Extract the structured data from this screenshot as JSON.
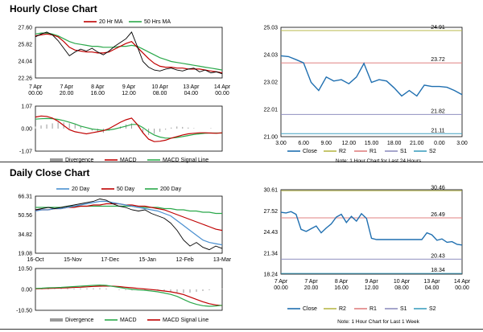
{
  "sections": {
    "hourly_title": "Hourly Close Chart",
    "daily_title": "Daily Close Chart"
  },
  "colors": {
    "ma_short": "#c00000",
    "ma_long": "#2aa84a",
    "price": "#000000",
    "histogram": "#9a9a9a",
    "close": "#1f6fb0",
    "r2": "#b8b84a",
    "r1": "#e08080",
    "s1": "#9090c0",
    "s2": "#40a0c0",
    "ma_200": "#2aa84a",
    "ma_20": "#4a8fd0"
  },
  "chart_data": [
    {
      "id": "hourly_price",
      "type": "line",
      "title": "",
      "legend": [
        "20 Hr MA",
        "50 Hrs MA"
      ],
      "y_ticks": [
        "27.60",
        "25.82",
        "24.04",
        "22.26"
      ],
      "ylim": [
        22.26,
        27.6
      ],
      "x_ticks": [
        "7 Apr\n00.00",
        "7 Apr\n20.00",
        "8 Apr\n16.00",
        "9 Apr\n12.00",
        "10 Apr\n08.00",
        "13 Apr\n04.00",
        "14 Apr\n00.00"
      ],
      "series": [
        {
          "name": "Price",
          "values": [
            26.6,
            26.9,
            27.1,
            26.8,
            26.2,
            25.4,
            24.6,
            25.0,
            25.3,
            25.1,
            25.4,
            25.0,
            24.7,
            25.1,
            25.6,
            26.0,
            26.4,
            27.1,
            25.6,
            24.0,
            23.4,
            23.1,
            23.0,
            23.2,
            23.3,
            23.1,
            23.0,
            23.2,
            23.3,
            22.9,
            23.1,
            22.8,
            22.9,
            22.7
          ]
        },
        {
          "name": "20 Hr MA",
          "values": [
            26.7,
            26.8,
            26.9,
            26.8,
            26.6,
            26.1,
            25.5,
            25.2,
            25.1,
            25.0,
            25.0,
            24.9,
            24.9,
            25.0,
            25.3,
            25.6,
            25.9,
            26.1,
            25.5,
            24.9,
            24.3,
            23.8,
            23.5,
            23.4,
            23.4,
            23.3,
            23.3,
            23.2,
            23.2,
            23.2,
            23.1,
            23.0,
            22.9,
            22.8
          ]
        },
        {
          "name": "50 Hrs MA",
          "values": [
            26.9,
            27.0,
            27.0,
            26.9,
            26.7,
            26.4,
            26.1,
            25.9,
            25.8,
            25.7,
            25.6,
            25.6,
            25.5,
            25.5,
            25.5,
            25.6,
            25.6,
            25.7,
            25.6,
            25.3,
            25.0,
            24.7,
            24.4,
            24.2,
            24.0,
            23.9,
            23.8,
            23.7,
            23.6,
            23.5,
            23.4,
            23.3,
            23.2,
            23.1
          ]
        }
      ]
    },
    {
      "id": "hourly_macd",
      "type": "line",
      "legend": [
        "Divergence",
        "MACD",
        "MACD Signal Line"
      ],
      "y_ticks": [
        "1.07",
        "0.00",
        "-1.07"
      ],
      "ylim": [
        -1.07,
        1.07
      ],
      "series": [
        {
          "name": "Divergence",
          "values": [
            0.1,
            0.15,
            0.2,
            0.25,
            0.3,
            0.3,
            0.25,
            0.2,
            0.1,
            0.0,
            -0.1,
            -0.15,
            -0.2,
            -0.1,
            0.0,
            0.1,
            0.2,
            0.25,
            0.0,
            -0.2,
            -0.3,
            -0.25,
            -0.15,
            -0.05,
            0.05,
            0.1,
            0.08,
            0.05,
            0.02,
            0.0,
            0.0,
            0.02,
            0.0,
            0.0
          ]
        },
        {
          "name": "MACD",
          "values": [
            0.55,
            0.6,
            0.58,
            0.5,
            0.35,
            0.15,
            -0.05,
            -0.15,
            -0.2,
            -0.25,
            -0.2,
            -0.15,
            -0.1,
            0.0,
            0.15,
            0.3,
            0.42,
            0.5,
            0.2,
            -0.2,
            -0.5,
            -0.62,
            -0.6,
            -0.55,
            -0.45,
            -0.38,
            -0.3,
            -0.25,
            -0.22,
            -0.2,
            -0.2,
            -0.21,
            -0.22,
            -0.2
          ]
        },
        {
          "name": "MACD Signal Line",
          "values": [
            0.45,
            0.47,
            0.48,
            0.47,
            0.44,
            0.38,
            0.3,
            0.22,
            0.12,
            0.05,
            -0.02,
            -0.05,
            -0.08,
            -0.06,
            -0.02,
            0.05,
            0.12,
            0.2,
            0.2,
            0.05,
            -0.15,
            -0.3,
            -0.4,
            -0.45,
            -0.45,
            -0.42,
            -0.38,
            -0.33,
            -0.28,
            -0.25,
            -0.22,
            -0.21,
            -0.21,
            -0.21
          ]
        }
      ]
    },
    {
      "id": "hourly_levels",
      "type": "line",
      "title": "",
      "legend": [
        "Close",
        "R2",
        "R1",
        "S1",
        "S2"
      ],
      "y_ticks": [
        "25.03",
        "24.03",
        "23.02",
        "22.01",
        "21.00"
      ],
      "ylim": [
        21.0,
        25.03
      ],
      "x_ticks": [
        "3.00",
        "6.00",
        "9.00",
        "12.00",
        "15.00",
        "18.00",
        "21.00",
        "0.00",
        "3.00"
      ],
      "levels": {
        "R2": 24.91,
        "R1": 23.72,
        "S1": 21.82,
        "S2": 21.11
      },
      "level_labels": [
        "24.91",
        "23.72",
        "21.82",
        "21.11"
      ],
      "series": [
        {
          "name": "Close",
          "values": [
            23.98,
            23.95,
            23.84,
            23.72,
            23.0,
            22.7,
            23.2,
            23.05,
            23.1,
            22.95,
            23.2,
            23.7,
            23.0,
            23.1,
            23.05,
            22.8,
            22.5,
            22.7,
            22.5,
            22.9,
            22.85,
            22.85,
            22.82,
            22.7,
            22.55
          ]
        }
      ],
      "note": "Note: 1 Hour Chart for Last 24 Hours"
    },
    {
      "id": "daily_price",
      "type": "line",
      "legend": [
        "20 Day",
        "50 Day",
        "200 Day"
      ],
      "y_ticks": [
        "66.31",
        "50.56",
        "34.82",
        "19.08"
      ],
      "ylim": [
        19.08,
        66.31
      ],
      "x_ticks": [
        "16-Oct",
        "15-Nov",
        "17-Dec",
        "15-Jan",
        "12-Feb",
        "13-Mar"
      ],
      "series": [
        {
          "name": "Price",
          "values": [
            55,
            56,
            57,
            56,
            57,
            58,
            59,
            60,
            61,
            62,
            64,
            63,
            60,
            58,
            57,
            55,
            54,
            55,
            52,
            50,
            48,
            44,
            38,
            30,
            25,
            28,
            24,
            22,
            25,
            23
          ]
        },
        {
          "name": "20 Day",
          "values": [
            54,
            55,
            55,
            56,
            56,
            57,
            58,
            59,
            60,
            61,
            62,
            62,
            61,
            60,
            59,
            58,
            57,
            56,
            55,
            54,
            52,
            50,
            46,
            42,
            38,
            34,
            30,
            28,
            27,
            26
          ]
        },
        {
          "name": "50 Day",
          "values": [
            55,
            55,
            55,
            56,
            56,
            57,
            57,
            58,
            58,
            59,
            59,
            60,
            60,
            60,
            59,
            59,
            58,
            58,
            57,
            56,
            55,
            53,
            51,
            49,
            47,
            45,
            43,
            41,
            39,
            38
          ]
        },
        {
          "name": "200 Day",
          "values": [
            57,
            57,
            57,
            57,
            57,
            58,
            58,
            58,
            58,
            58,
            58,
            58,
            58,
            58,
            58,
            58,
            57,
            57,
            57,
            57,
            56,
            56,
            55,
            55,
            54,
            54,
            53,
            53,
            52,
            52
          ]
        }
      ]
    },
    {
      "id": "daily_macd",
      "type": "line",
      "legend": [
        "Divergence",
        "MACD",
        "MACD Signal Line"
      ],
      "y_ticks": [
        "10.50",
        "0.00",
        "-10.50"
      ],
      "ylim": [
        -10.5,
        10.5
      ],
      "series": [
        {
          "name": "Divergence",
          "values": [
            0.2,
            0.3,
            0.3,
            0.2,
            0.3,
            0.4,
            0.4,
            0.5,
            0.5,
            0.5,
            0.6,
            0.4,
            0.0,
            -0.3,
            -0.4,
            -0.5,
            -0.4,
            -0.3,
            -0.4,
            -0.6,
            -0.8,
            -1.0,
            -1.4,
            -1.8,
            -1.6,
            -1.2,
            -0.8,
            -0.4,
            0.0,
            0.3
          ]
        },
        {
          "name": "MACD",
          "values": [
            0.5,
            0.6,
            0.8,
            0.9,
            1.0,
            1.2,
            1.4,
            1.6,
            1.8,
            2.0,
            2.2,
            2.0,
            1.5,
            1.0,
            0.5,
            0.0,
            -0.3,
            -0.5,
            -0.8,
            -1.2,
            -1.8,
            -2.5,
            -3.5,
            -5.0,
            -6.5,
            -7.5,
            -8.2,
            -8.5,
            -8.3,
            -8.0
          ]
        },
        {
          "name": "MACD Signal Line",
          "values": [
            0.3,
            0.4,
            0.5,
            0.6,
            0.7,
            0.8,
            1.0,
            1.1,
            1.3,
            1.5,
            1.6,
            1.7,
            1.6,
            1.4,
            1.1,
            0.8,
            0.5,
            0.2,
            -0.1,
            -0.4,
            -0.8,
            -1.2,
            -1.8,
            -2.6,
            -3.8,
            -5.0,
            -6.2,
            -7.2,
            -7.8,
            -8.1
          ]
        }
      ]
    },
    {
      "id": "daily_levels",
      "type": "line",
      "legend": [
        "Close",
        "R2",
        "R1",
        "S1",
        "S2"
      ],
      "y_ticks": [
        "30.61",
        "27.52",
        "24.43",
        "21.34",
        "18.24"
      ],
      "ylim": [
        18.24,
        30.61
      ],
      "x_ticks": [
        "7 Apr\n00.00",
        "7 Apr\n20.00",
        "8 Apr\n16.00",
        "9 Apr\n12.00",
        "10 Apr\n08.00",
        "13 Apr\n04.00",
        "14 Apr\n00.00"
      ],
      "levels": {
        "R2": 30.46,
        "R1": 26.49,
        "S1": 20.43,
        "S2": 18.34
      },
      "level_labels": [
        "30.46",
        "26.49",
        "20.43",
        "18.34"
      ],
      "series": [
        {
          "name": "Close",
          "values": [
            27.3,
            27.2,
            27.4,
            27.0,
            24.8,
            24.5,
            24.9,
            25.3,
            24.3,
            25.0,
            25.6,
            26.6,
            27.0,
            25.8,
            26.7,
            26.0,
            27.1,
            26.4,
            23.5,
            23.3,
            23.3,
            23.3,
            23.3,
            23.3,
            23.3,
            23.3,
            23.3,
            23.3,
            23.3,
            24.3,
            24.0,
            23.2,
            23.4,
            22.9,
            23.0,
            22.6,
            22.5
          ]
        }
      ],
      "note": "Note: 1 Hour Chart for Last 1 Week"
    }
  ]
}
